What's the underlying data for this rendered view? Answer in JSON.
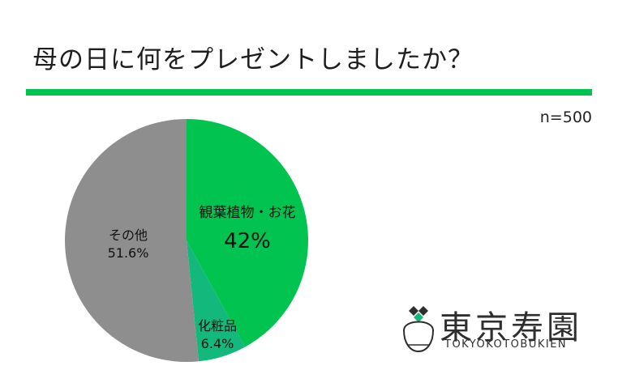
{
  "header": {
    "title": "母の日に何をプレゼントしましたか？",
    "sample_size": "n=500"
  },
  "colors": {
    "accent": "#00c44f",
    "slice_plants": "#00c44f",
    "slice_cosmetics": "#12b87c",
    "slice_other": "#8e8e8e"
  },
  "chart_data": {
    "type": "pie",
    "start": "top",
    "direction": "clockwise",
    "slices": [
      {
        "label": "観葉植物・お花",
        "value": 42,
        "value_label": "42%",
        "color": "#00c44f"
      },
      {
        "label": "化粧品",
        "value": 6.4,
        "value_label": "6.4%",
        "color": "#12b87c"
      },
      {
        "label": "その他",
        "value": 51.6,
        "value_label": "51.6%",
        "color": "#8e8e8e"
      }
    ]
  },
  "logo": {
    "name": "東京寿園",
    "romaji": "TOKYOKOTOBUKIEN"
  }
}
